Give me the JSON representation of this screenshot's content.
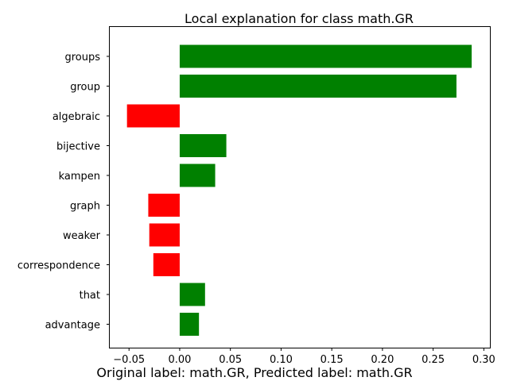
{
  "chart_data": {
    "type": "bar",
    "orientation": "horizontal",
    "title": "Local explanation for class math.GR",
    "xlabel": "",
    "ylabel": "",
    "xlim": [
      -0.069,
      0.306
    ],
    "xticks": [
      -0.05,
      0.0,
      0.05,
      0.1,
      0.15,
      0.2,
      0.25,
      0.3
    ],
    "xtick_labels": [
      "−0.05",
      "0.00",
      "0.05",
      "0.10",
      "0.15",
      "0.20",
      "0.25",
      "0.30"
    ],
    "categories": [
      "groups",
      "group",
      "algebraic",
      "bijective",
      "kampen",
      "graph",
      "weaker",
      "correspondence",
      "that",
      "advantage"
    ],
    "values": [
      0.288,
      0.273,
      -0.052,
      0.046,
      0.035,
      -0.031,
      -0.03,
      -0.026,
      0.025,
      0.019
    ],
    "positive_color": "#008000",
    "negative_color": "#ff0000",
    "grid": false,
    "legend": "none"
  },
  "caption": "Original label: math.GR, Predicted label: math.GR"
}
